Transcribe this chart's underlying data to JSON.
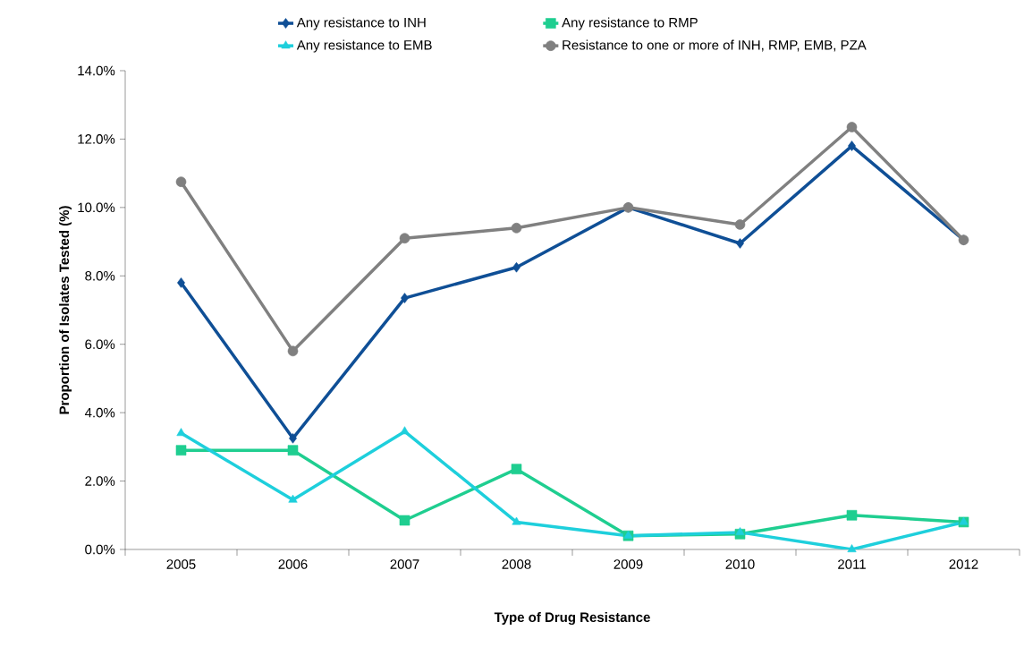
{
  "chart_data": {
    "type": "line",
    "xlabel": "Type of Drug Resistance",
    "ylabel": "Proportion of Isolates Tested (%)",
    "categories": [
      "2005",
      "2006",
      "2007",
      "2008",
      "2009",
      "2010",
      "2011",
      "2012"
    ],
    "series": [
      {
        "name": "Any resistance to INH",
        "color": "#0f4f96",
        "marker": "diamond",
        "values": [
          7.8,
          3.25,
          7.35,
          8.25,
          10.0,
          8.95,
          11.8,
          9.05
        ]
      },
      {
        "name": "Any resistance to RMP",
        "color": "#1fce90",
        "marker": "square",
        "values": [
          2.9,
          2.9,
          0.85,
          2.35,
          0.4,
          0.45,
          1.0,
          0.8
        ]
      },
      {
        "name": "Any resistance to EMB",
        "color": "#1ecfdc",
        "marker": "triangle",
        "values": [
          3.4,
          1.45,
          3.45,
          0.8,
          0.4,
          0.5,
          0.0,
          0.8
        ]
      },
      {
        "name": "Resistance to one or more of INH, RMP, EMB, PZA",
        "color": "#808080",
        "marker": "circle",
        "values": [
          10.75,
          5.8,
          9.1,
          9.4,
          10.0,
          9.5,
          12.35,
          9.05
        ]
      }
    ],
    "ylim": [
      0,
      14
    ],
    "yticks": [
      {
        "value": 0,
        "label": "0.0%"
      },
      {
        "value": 2,
        "label": "2.0%"
      },
      {
        "value": 4,
        "label": "4.0%"
      },
      {
        "value": 6,
        "label": "6.0%"
      },
      {
        "value": 8,
        "label": "8.0%"
      },
      {
        "value": 10,
        "label": "10.0%"
      },
      {
        "value": 12,
        "label": "12.0%"
      },
      {
        "value": 14,
        "label": "14.0%"
      }
    ],
    "grid": false,
    "legend": "top",
    "line_style": "solid"
  }
}
